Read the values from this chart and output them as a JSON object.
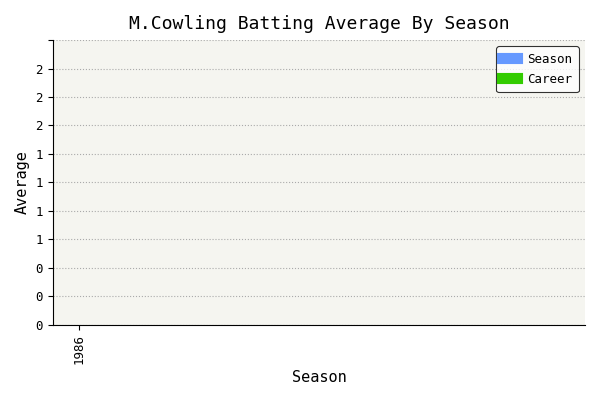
{
  "title": "M.Cowling Batting Average By Season",
  "xlabel": "Season",
  "ylabel": "Average",
  "x_ticks": [
    1986
  ],
  "xlim": [
    1985.5,
    1995.5
  ],
  "ylim": [
    0,
    2.5
  ],
  "ytick_values": [
    0,
    0.25,
    0.5,
    0.75,
    1.0,
    1.25,
    1.5,
    1.75,
    2.0,
    2.25,
    2.5
  ],
  "ytick_labels": [
    "0",
    "0",
    "0",
    "1",
    "1",
    "1",
    "1",
    "2",
    "2",
    "2",
    ""
  ],
  "season_color": "#6699ff",
  "career_color": "#33cc00",
  "bg_color": "#ffffff",
  "plot_bg_color": "#f5f5f0",
  "grid_color": "#aaaaaa",
  "title_fontsize": 13,
  "label_fontsize": 11,
  "tick_fontsize": 9,
  "legend_labels": [
    "Season",
    "Career"
  ],
  "font_family": "monospace"
}
